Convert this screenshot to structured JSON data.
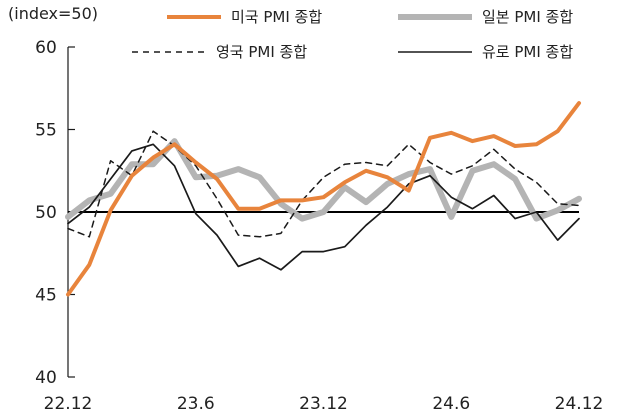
{
  "unit_label": "(index=50)",
  "colors": {
    "us": "#E8843C",
    "japan": "#B4B4B4",
    "uk": "#1A1A1A",
    "euro": "#1A1A1A",
    "axis": "#1A1A1A",
    "baseline": "#000000"
  },
  "chart_data": {
    "type": "line",
    "title": "",
    "xlabel": "",
    "ylabel": "",
    "ylim": [
      40,
      60
    ],
    "y_ticks": [
      "40",
      "45",
      "50",
      "55",
      "60"
    ],
    "x_tick_labels": [
      "22.12",
      "23.6",
      "23.12",
      "24.6",
      "24.12"
    ],
    "baseline": 50,
    "grid": false,
    "legend_position": "top",
    "x": [
      "22.12",
      "23.1",
      "23.2",
      "23.3",
      "23.4",
      "23.5",
      "23.6",
      "23.7",
      "23.8",
      "23.9",
      "23.10",
      "23.11",
      "23.12",
      "24.1",
      "24.2",
      "24.3",
      "24.4",
      "24.5",
      "24.6",
      "24.7",
      "24.8",
      "24.9",
      "24.10",
      "24.11",
      "24.12"
    ],
    "series": [
      {
        "name": "미국 PMI 종합",
        "style": "thick-orange",
        "values": [
          45.0,
          46.8,
          50.1,
          52.2,
          53.3,
          54.1,
          53.0,
          52.0,
          50.2,
          50.2,
          50.7,
          50.7,
          50.9,
          51.8,
          52.5,
          52.1,
          51.3,
          54.5,
          54.8,
          54.3,
          54.6,
          54.0,
          54.1,
          54.9,
          56.6
        ]
      },
      {
        "name": "일본 PMI 종합",
        "style": "thick-gray",
        "values": [
          49.7,
          50.7,
          51.1,
          52.9,
          52.9,
          54.3,
          52.1,
          52.2,
          52.6,
          52.1,
          50.5,
          49.6,
          50.0,
          51.5,
          50.6,
          51.7,
          52.3,
          52.6,
          49.7,
          52.5,
          52.9,
          52.0,
          49.6,
          50.1,
          50.8
        ]
      },
      {
        "name": "영국 PMI 종합",
        "style": "dashed-black",
        "values": [
          49.0,
          48.5,
          53.1,
          52.2,
          54.9,
          54.0,
          52.8,
          50.8,
          48.6,
          48.5,
          48.7,
          50.7,
          52.1,
          52.9,
          53.0,
          52.8,
          54.1,
          53.0,
          52.3,
          52.8,
          53.8,
          52.6,
          51.8,
          50.5,
          50.4
        ]
      },
      {
        "name": "유로 PMI 종합",
        "style": "thin-black",
        "values": [
          49.3,
          50.3,
          52.0,
          53.7,
          54.1,
          52.8,
          49.9,
          48.6,
          46.7,
          47.2,
          46.5,
          47.6,
          47.6,
          47.9,
          49.2,
          50.3,
          51.7,
          52.2,
          50.9,
          50.2,
          51.0,
          49.6,
          50.0,
          48.3,
          49.6
        ]
      }
    ]
  }
}
